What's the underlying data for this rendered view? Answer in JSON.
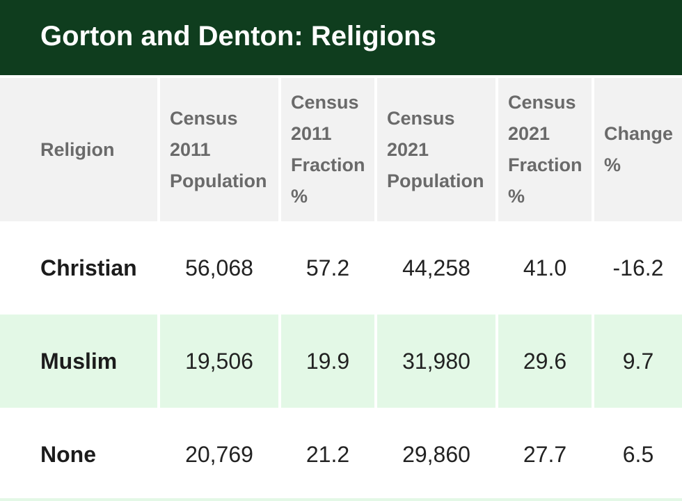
{
  "title": "Gorton and Denton: Religions",
  "table": {
    "headers": [
      "Religion",
      "Census\n2011\nPopulation",
      "Census\n2011\nFraction\n%",
      "Census\n2021\nPopulation",
      "Census\n2021\nFraction\n%",
      "Change\n%"
    ],
    "rows": [
      [
        "Christian",
        "56,068",
        "57.2",
        "44,258",
        "41.0",
        "-16.2"
      ],
      [
        "Muslim",
        "19,506",
        "19.9",
        "31,980",
        "29.6",
        "9.7"
      ],
      [
        "None",
        "20,769",
        "21.2",
        "29,860",
        "27.7",
        "6.5"
      ]
    ]
  },
  "colors": {
    "title_bar": "#0f3d1e",
    "header_bg": "#f2f2f2",
    "stripe_bg": "#e3f8e6"
  }
}
